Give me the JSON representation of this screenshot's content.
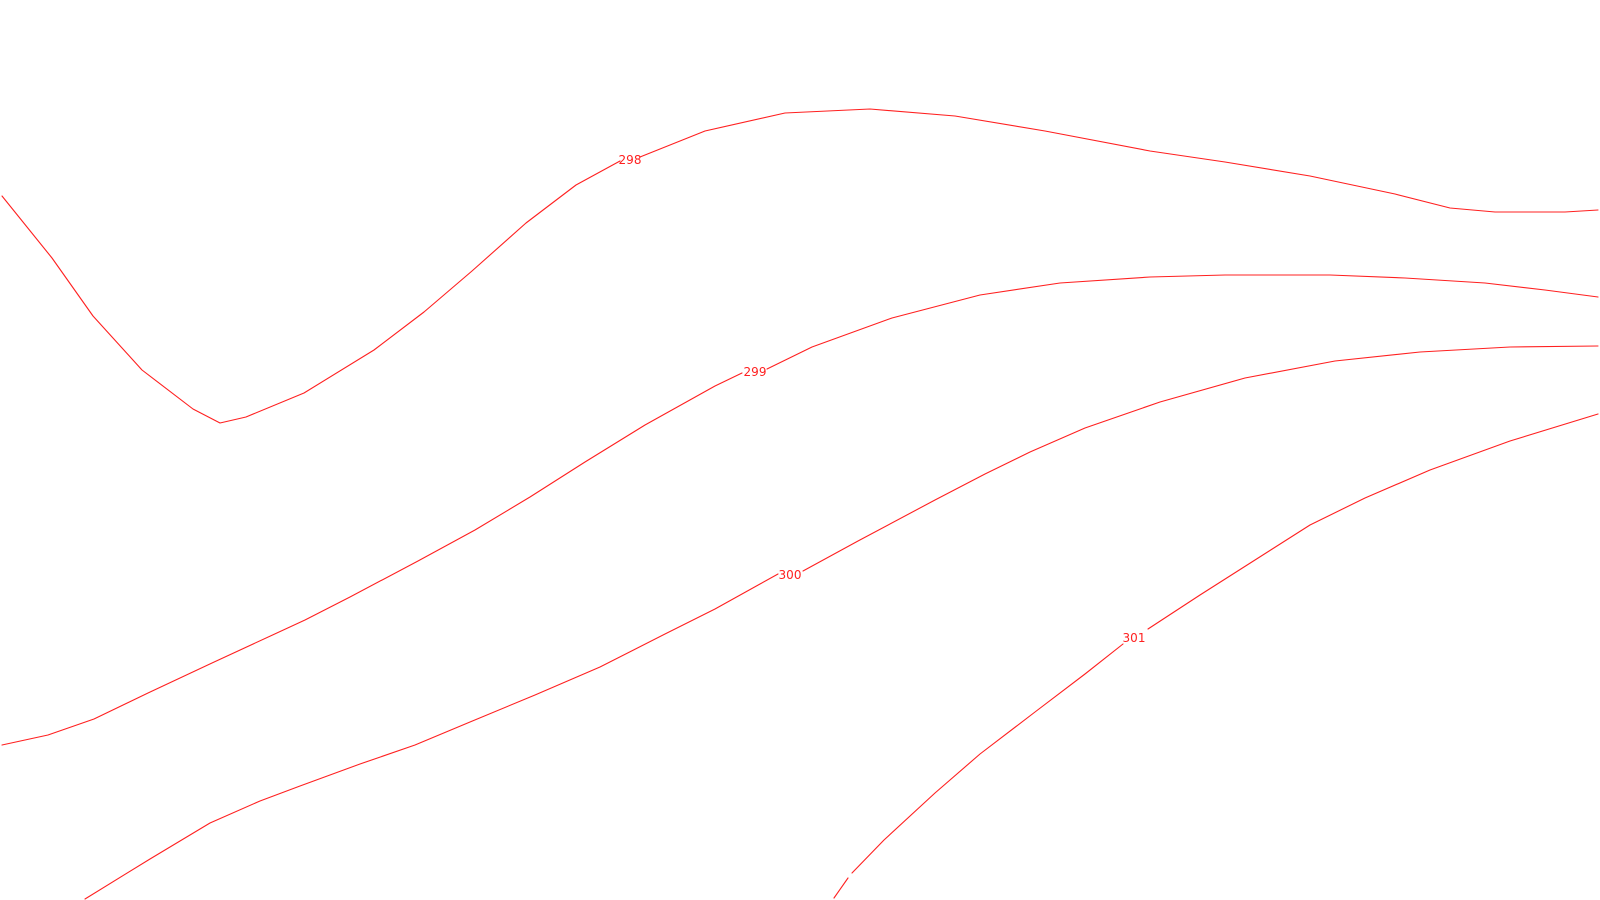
{
  "map": {
    "line_color": "#ff2020",
    "label_color": "#ff2020",
    "background": "#ffffff",
    "contours": [
      {
        "id": "298",
        "label": "298"
      },
      {
        "id": "299",
        "label": "299"
      },
      {
        "id": "300",
        "label": "300"
      },
      {
        "id": "301",
        "label": "301"
      }
    ]
  }
}
